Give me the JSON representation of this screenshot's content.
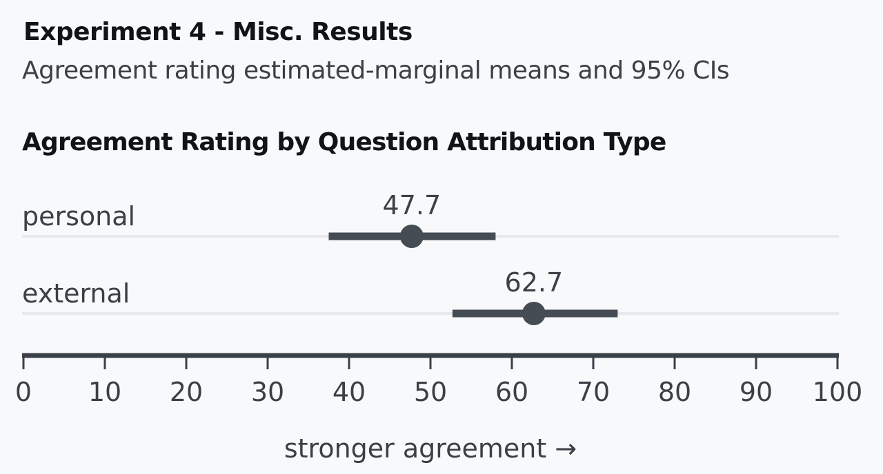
{
  "header": {
    "title": "Experiment 4 - Misc. Results",
    "subtitle": "Agreement rating estimated-marginal means and 95% CIs"
  },
  "colors": {
    "background": "#f8f9fb",
    "mark": "#454c54",
    "gridline": "#e7e9ec",
    "axis": "#3a4047"
  },
  "chart_data": {
    "type": "scatter",
    "title": "Agreement Rating by Question Attribution Type",
    "xlabel": "stronger agreement →",
    "xlim": [
      0,
      100
    ],
    "ticks": [
      0,
      10,
      20,
      30,
      40,
      50,
      60,
      70,
      80,
      90,
      100
    ],
    "grid": true,
    "rows": [
      {
        "label": "personal",
        "mean": 47.7,
        "ci_low": 37.5,
        "ci_high": 58,
        "value_label": "47.7"
      },
      {
        "label": "external",
        "mean": 62.7,
        "ci_low": 52.7,
        "ci_high": 73,
        "value_label": "62.7"
      }
    ]
  }
}
